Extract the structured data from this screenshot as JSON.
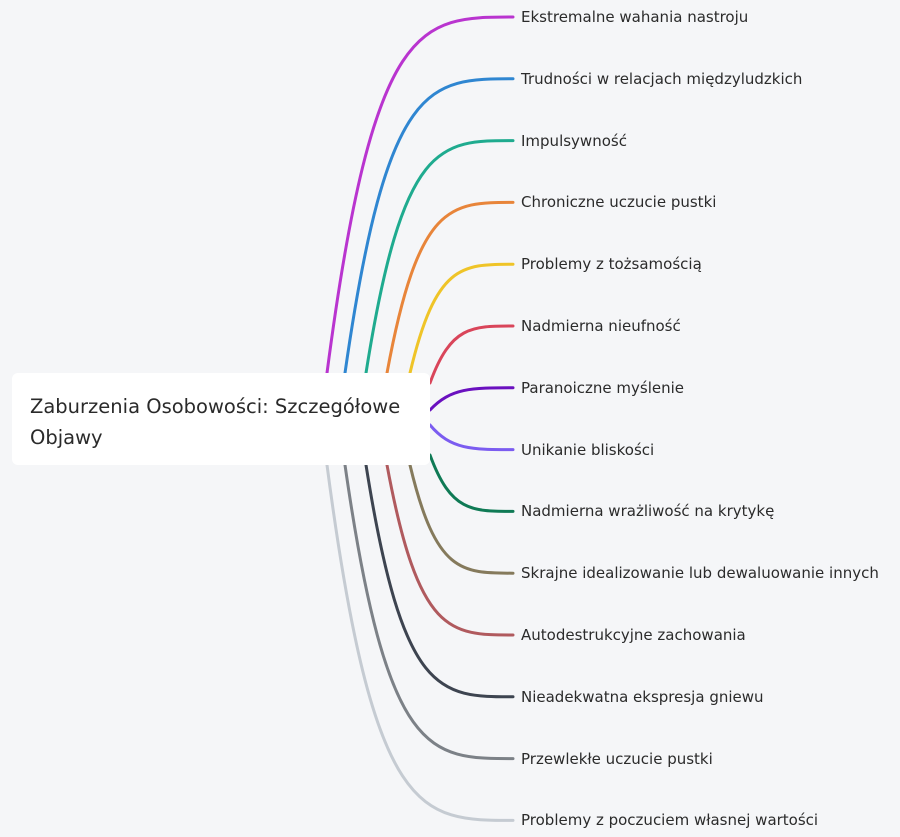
{
  "root": {
    "label": "Zaburzenia Osobowości: Szczegółowe Objawy"
  },
  "branches": [
    {
      "label": "Ekstremalne wahania nastroju",
      "color": "#b934cf"
    },
    {
      "label": "Trudności w relacjach międzyludzkich",
      "color": "#2f86d1"
    },
    {
      "label": "Impulsywność",
      "color": "#1fab8f"
    },
    {
      "label": "Chroniczne uczucie pustki",
      "color": "#e8853a"
    },
    {
      "label": "Problemy z tożsamością",
      "color": "#efc428"
    },
    {
      "label": "Nadmierna nieufność",
      "color": "#d9455a"
    },
    {
      "label": "Paranoiczne myślenie",
      "color": "#6a10bf"
    },
    {
      "label": "Unikanie bliskości",
      "color": "#7b5cf0"
    },
    {
      "label": "Nadmierna wrażliwość na krytykę",
      "color": "#0f7a55"
    },
    {
      "label": "Skrajne idealizowanie lub dewaluowanie innych",
      "color": "#857a5c"
    },
    {
      "label": "Autodestrukcyjne zachowania",
      "color": "#b05a5e"
    },
    {
      "label": "Nieadekwatna ekspresja gniewu",
      "color": "#3d4450"
    },
    {
      "label": "Przewlekłe uczucie pustki",
      "color": "#7c8187"
    },
    {
      "label": "Problemy z poczuciem własnej wartości",
      "color": "#c5cbd2"
    }
  ]
}
